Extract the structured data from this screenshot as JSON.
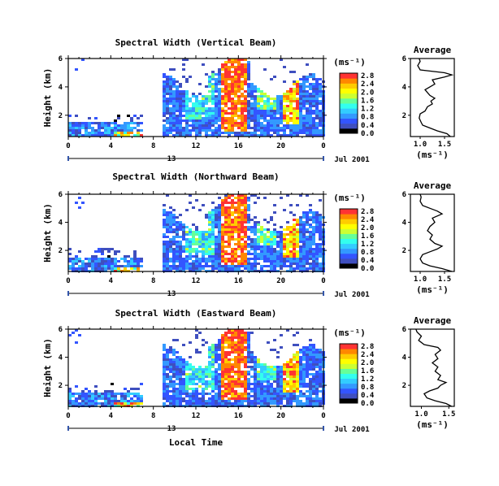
{
  "colorbar": {
    "unit_label": "(ms⁻¹)",
    "ticks": [
      "0.0",
      "0.4",
      "0.8",
      "1.2",
      "1.6",
      "2.0",
      "2.4",
      "2.8"
    ],
    "colors": [
      "#000000",
      "#3f4fbf",
      "#3355ff",
      "#3399ff",
      "#33ccff",
      "#33ffee",
      "#66ff99",
      "#ccff33",
      "#ffff00",
      "#ffcc00",
      "#ff8800",
      "#ff3333"
    ]
  },
  "common": {
    "date_label": "Jul 2001",
    "xlabel": "Local Time",
    "day_label": "13",
    "x_ticks": [
      "0",
      "4",
      "8",
      "12",
      "16",
      "20",
      "0"
    ],
    "y_ticks": [
      "2",
      "4",
      "6"
    ],
    "ylabel": "Height (km)",
    "avg_title": "Average",
    "avg_unit": "(ms⁻¹)",
    "avg_y_ticks": [
      "2",
      "4",
      "6"
    ]
  },
  "chart_data": [
    {
      "type": "heatmap",
      "title": "Spectral Width (Vertical Beam)",
      "xlim": [
        0,
        24
      ],
      "ylim": [
        0.5,
        6
      ],
      "avg_x_ticks": [
        "1.0",
        "1.5"
      ],
      "avg_xlim": [
        0.8,
        1.7
      ],
      "avg_profile": [
        [
          1.62,
          0.5
        ],
        [
          1.55,
          0.7
        ],
        [
          1.35,
          0.9
        ],
        [
          1.2,
          1.1
        ],
        [
          1.05,
          1.3
        ],
        [
          1.02,
          1.5
        ],
        [
          0.98,
          1.8
        ],
        [
          1.0,
          2.1
        ],
        [
          1.1,
          2.3
        ],
        [
          1.15,
          2.6
        ],
        [
          1.25,
          2.8
        ],
        [
          1.22,
          3.0
        ],
        [
          1.3,
          3.2
        ],
        [
          1.2,
          3.4
        ],
        [
          1.15,
          3.6
        ],
        [
          1.1,
          3.8
        ],
        [
          1.2,
          4.0
        ],
        [
          1.3,
          4.2
        ],
        [
          1.25,
          4.5
        ],
        [
          1.5,
          4.7
        ],
        [
          1.65,
          4.85
        ],
        [
          1.5,
          5.0
        ],
        [
          1.0,
          5.2
        ],
        [
          0.95,
          5.5
        ],
        [
          1.0,
          5.8
        ],
        [
          0.98,
          6.0
        ]
      ]
    },
    {
      "type": "heatmap",
      "title": "Spectral Width (Northward Beam)",
      "xlim": [
        0,
        24
      ],
      "ylim": [
        0.5,
        6
      ],
      "avg_x_ticks": [
        "1.0",
        "1.5"
      ],
      "avg_xlim": [
        0.8,
        1.7
      ],
      "avg_profile": [
        [
          1.65,
          0.5
        ],
        [
          1.45,
          0.7
        ],
        [
          1.2,
          0.9
        ],
        [
          1.05,
          1.1
        ],
        [
          1.0,
          1.4
        ],
        [
          1.05,
          1.7
        ],
        [
          1.2,
          1.9
        ],
        [
          1.35,
          2.1
        ],
        [
          1.45,
          2.3
        ],
        [
          1.3,
          2.5
        ],
        [
          1.2,
          2.8
        ],
        [
          1.25,
          3.1
        ],
        [
          1.15,
          3.4
        ],
        [
          1.2,
          3.7
        ],
        [
          1.3,
          4.0
        ],
        [
          1.25,
          4.3
        ],
        [
          1.45,
          4.6
        ],
        [
          1.35,
          4.8
        ],
        [
          1.2,
          5.0
        ],
        [
          1.05,
          5.2
        ],
        [
          1.0,
          5.5
        ],
        [
          1.02,
          5.8
        ],
        [
          1.0,
          6.0
        ]
      ]
    },
    {
      "type": "heatmap",
      "title": "Spectral Width (Eastward Beam)",
      "xlim": [
        0,
        24
      ],
      "ylim": [
        0.5,
        6
      ],
      "avg_x_ticks": [
        "1.0",
        "1.5"
      ],
      "avg_xlim": [
        0.8,
        1.6
      ],
      "avg_profile": [
        [
          1.55,
          0.5
        ],
        [
          1.45,
          0.7
        ],
        [
          1.25,
          0.9
        ],
        [
          1.1,
          1.1
        ],
        [
          1.05,
          1.4
        ],
        [
          1.15,
          1.6
        ],
        [
          1.3,
          1.8
        ],
        [
          1.35,
          2.0
        ],
        [
          1.45,
          2.2
        ],
        [
          1.3,
          2.4
        ],
        [
          1.35,
          2.7
        ],
        [
          1.25,
          3.0
        ],
        [
          1.3,
          3.3
        ],
        [
          1.2,
          3.6
        ],
        [
          1.3,
          3.9
        ],
        [
          1.25,
          4.2
        ],
        [
          1.35,
          4.5
        ],
        [
          1.3,
          4.7
        ],
        [
          1.05,
          4.9
        ],
        [
          0.95,
          5.2
        ],
        [
          1.0,
          5.5
        ],
        [
          0.92,
          5.8
        ],
        [
          0.9,
          6.0
        ]
      ]
    }
  ]
}
